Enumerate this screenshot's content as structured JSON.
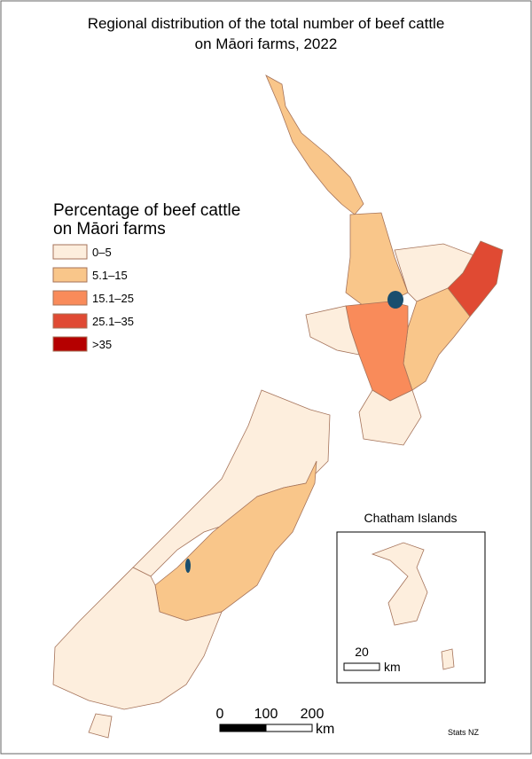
{
  "title": [
    "Regional distribution of the total number of beef cattle",
    "on Māori farms, 2022"
  ],
  "legend": {
    "title": [
      "Percentage of beef cattle",
      "on Māori farms"
    ],
    "items": [
      {
        "label": "0–5",
        "color": "#fdeedd"
      },
      {
        "label": "5.1–15",
        "color": "#f9c68a"
      },
      {
        "label": "15.1–25",
        "color": "#f98b5a"
      },
      {
        "label": "25.1–35",
        "color": "#e04a33"
      },
      {
        "label": ">35",
        "color": "#b50000"
      }
    ]
  },
  "inset": {
    "title": "Chatham Islands",
    "scale": {
      "value": 20,
      "unit": "km"
    }
  },
  "scale_bar": {
    "ticks": [
      0,
      100,
      200
    ],
    "unit": "km"
  },
  "credit": "Stats NZ"
}
